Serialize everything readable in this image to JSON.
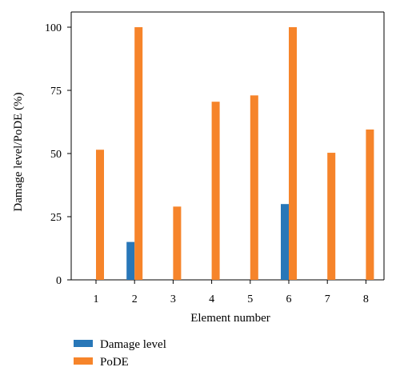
{
  "chart_data": {
    "type": "bar",
    "xlabel": "Element number",
    "ylabel": "Damage level/PoDE (%)",
    "categories": [
      "1",
      "2",
      "3",
      "4",
      "5",
      "6",
      "7",
      "8"
    ],
    "ylim": [
      0,
      100
    ],
    "yticks": [
      0,
      25,
      50,
      75,
      100
    ],
    "grid": false,
    "legend_position": "bottom-left",
    "series": [
      {
        "name": "Damage level",
        "color": "#2877b8",
        "values": [
          0,
          15,
          0,
          0,
          0,
          30,
          0,
          0
        ]
      },
      {
        "name": "PoDE",
        "color": "#f6842a",
        "values": [
          51.5,
          100,
          29,
          70.5,
          73,
          100,
          50.3,
          59.5
        ]
      }
    ]
  }
}
